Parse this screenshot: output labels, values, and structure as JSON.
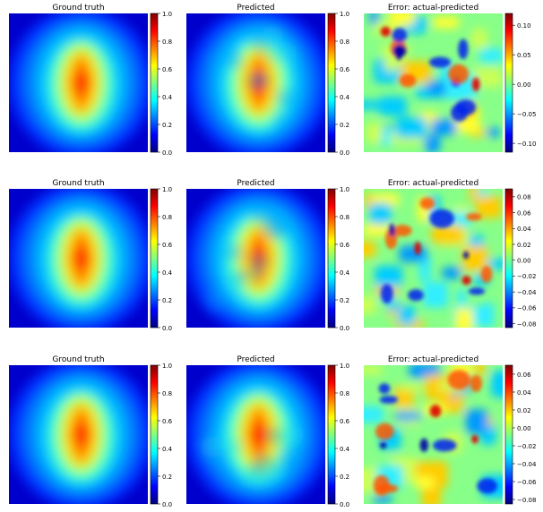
{
  "colors": {
    "jet": [
      "#00007f",
      "#0000ff",
      "#007fff",
      "#00ffff",
      "#7fff7f",
      "#ffff00",
      "#ff7f00",
      "#ff0000",
      "#7f0000"
    ]
  },
  "chart_data": [
    {
      "type": "heatmap",
      "row": 0,
      "col": 0,
      "title": "Ground truth",
      "field": "diamond",
      "colorbar": {
        "min": 0.0,
        "max": 1.0,
        "ticks": [
          0.0,
          0.2,
          0.4,
          0.6,
          0.8,
          1.0
        ],
        "tick_labels": [
          "0.0",
          "0.2",
          "0.4",
          "0.6",
          "0.8",
          "1.0"
        ]
      }
    },
    {
      "type": "heatmap",
      "row": 0,
      "col": 1,
      "title": "Predicted",
      "field": "diamond-noisy",
      "colorbar": {
        "min": 0.0,
        "max": 1.0,
        "ticks": [
          0.0,
          0.2,
          0.4,
          0.6,
          0.8,
          1.0
        ],
        "tick_labels": [
          "0.0",
          "0.2",
          "0.4",
          "0.6",
          "0.8",
          "1.0"
        ]
      }
    },
    {
      "type": "heatmap",
      "row": 0,
      "col": 2,
      "title": "Error: actual-predicted",
      "field": "error",
      "colorbar": {
        "min": -0.115,
        "max": 0.12,
        "ticks": [
          -0.1,
          -0.05,
          0.0,
          0.05,
          0.1
        ],
        "tick_labels": [
          "−0.10",
          "−0.05",
          "0.00",
          "0.05",
          "0.10"
        ]
      }
    },
    {
      "type": "heatmap",
      "row": 1,
      "col": 0,
      "title": "Ground truth",
      "field": "diamond",
      "colorbar": {
        "min": 0.0,
        "max": 1.0,
        "ticks": [
          0.0,
          0.2,
          0.4,
          0.6,
          0.8,
          1.0
        ],
        "tick_labels": [
          "0.0",
          "0.2",
          "0.4",
          "0.6",
          "0.8",
          "1.0"
        ]
      }
    },
    {
      "type": "heatmap",
      "row": 1,
      "col": 1,
      "title": "Predicted",
      "field": "diamond-noisy",
      "colorbar": {
        "min": 0.0,
        "max": 1.0,
        "ticks": [
          0.0,
          0.2,
          0.4,
          0.6,
          0.8,
          1.0
        ],
        "tick_labels": [
          "0.0",
          "0.2",
          "0.4",
          "0.6",
          "0.8",
          "1.0"
        ]
      }
    },
    {
      "type": "heatmap",
      "row": 1,
      "col": 2,
      "title": "Error: actual-predicted",
      "field": "error",
      "colorbar": {
        "min": -0.085,
        "max": 0.09,
        "ticks": [
          -0.08,
          -0.06,
          -0.04,
          -0.02,
          0.0,
          0.02,
          0.04,
          0.06,
          0.08
        ],
        "tick_labels": [
          "−0.08",
          "−0.06",
          "−0.04",
          "−0.02",
          "0.00",
          "0.02",
          "0.04",
          "0.06",
          "0.08"
        ]
      }
    },
    {
      "type": "heatmap",
      "row": 2,
      "col": 0,
      "title": "Ground truth",
      "field": "diamond",
      "colorbar": {
        "min": 0.0,
        "max": 1.0,
        "ticks": [
          0.0,
          0.2,
          0.4,
          0.6,
          0.8,
          1.0
        ],
        "tick_labels": [
          "0.0",
          "0.2",
          "0.4",
          "0.6",
          "0.8",
          "1.0"
        ]
      }
    },
    {
      "type": "heatmap",
      "row": 2,
      "col": 1,
      "title": "Predicted",
      "field": "diamond-noisy",
      "colorbar": {
        "min": 0.0,
        "max": 1.0,
        "ticks": [
          0.0,
          0.2,
          0.4,
          0.6,
          0.8,
          1.0
        ],
        "tick_labels": [
          "0.0",
          "0.2",
          "0.4",
          "0.6",
          "0.8",
          "1.0"
        ]
      }
    },
    {
      "type": "heatmap",
      "row": 2,
      "col": 2,
      "title": "Error: actual-predicted",
      "field": "error",
      "colorbar": {
        "min": -0.085,
        "max": 0.07,
        "ticks": [
          -0.08,
          -0.06,
          -0.04,
          -0.02,
          0.0,
          0.02,
          0.04,
          0.06
        ],
        "tick_labels": [
          "−0.08",
          "−0.06",
          "−0.04",
          "−0.02",
          "0.00",
          "0.02",
          "0.04",
          "0.06"
        ]
      }
    }
  ]
}
